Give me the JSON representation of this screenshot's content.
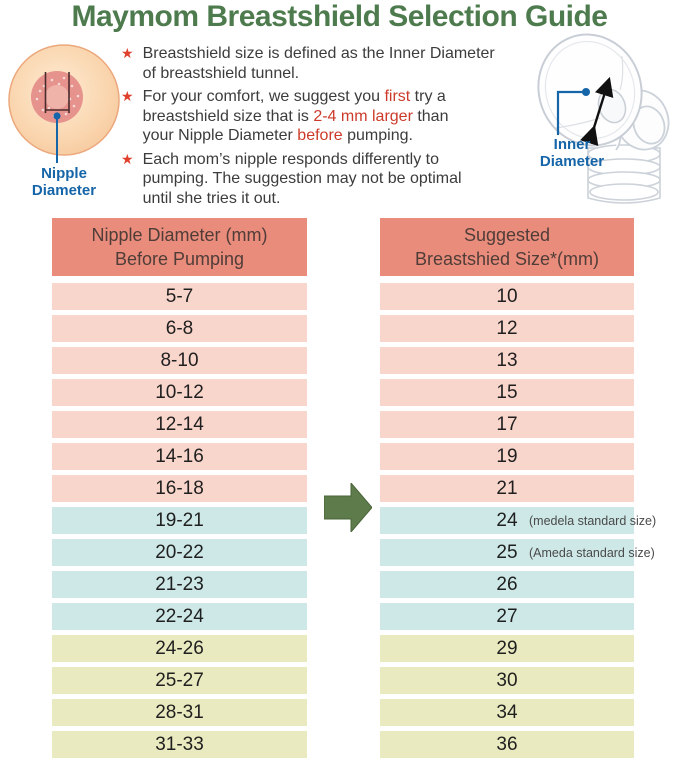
{
  "title": "Maymom Breastshield Selection Guide",
  "icons": {
    "star": "★",
    "arrow_right": "block-arrow-right"
  },
  "colors": {
    "title_green": "#4e7b4e",
    "arrow_green": "#5e7c4b",
    "label_blue": "#1565a8",
    "accent_red": "#cc3b2a",
    "star_red": "#e0402b",
    "header_bg": "#e98c7c",
    "header_text": "#503d38",
    "row_pink": "#f9d6cb",
    "row_blue": "#cde8e7",
    "row_yellow": "#eaeac1",
    "row_text": "#1f1f1f",
    "note_text": "#4a4a4a"
  },
  "bullets": [
    {
      "segments": [
        {
          "text": "Breastshield size is defined as the Inner Diameter\nof breastshield tunnel."
        }
      ]
    },
    {
      "segments": [
        {
          "text": "For your comfort, we suggest you "
        },
        {
          "text": "first",
          "red": true
        },
        {
          "text": " try a\nbreastshield size that is "
        },
        {
          "text": "2-4 mm larger",
          "red": true
        },
        {
          "text": " than\nyour Nipple Diameter "
        },
        {
          "text": "before",
          "red": true
        },
        {
          "text": " pumping."
        }
      ]
    },
    {
      "segments": [
        {
          "text": "Each mom’s nipple responds differently to\npumping. The suggestion may not be optimal\nuntil she tries it out."
        }
      ]
    }
  ],
  "left_illustration": {
    "label": "Nipple\nDiameter"
  },
  "right_illustration": {
    "label": "Inner\nDiameter"
  },
  "table": {
    "left_header": "Nipple Diameter (mm)\nBefore Pumping",
    "right_header": "Suggested\nBreastshied Size*(mm)",
    "rows": [
      {
        "range": "5-7",
        "size": "10",
        "tone": "pink"
      },
      {
        "range": "6-8",
        "size": "12",
        "tone": "pink"
      },
      {
        "range": "8-10",
        "size": "13",
        "tone": "pink"
      },
      {
        "range": "10-12",
        "size": "15",
        "tone": "pink"
      },
      {
        "range": "12-14",
        "size": "17",
        "tone": "pink"
      },
      {
        "range": "14-16",
        "size": "19",
        "tone": "pink"
      },
      {
        "range": "16-18",
        "size": "21",
        "tone": "pink"
      },
      {
        "range": "19-21",
        "size": "24",
        "note": "(medela standard size)",
        "tone": "blue"
      },
      {
        "range": "20-22",
        "size": "25",
        "note": "(Ameda standard size)",
        "tone": "blue"
      },
      {
        "range": "21-23",
        "size": "26",
        "tone": "blue"
      },
      {
        "range": "22-24",
        "size": "27",
        "tone": "blue"
      },
      {
        "range": "24-26",
        "size": "29",
        "tone": "yellow"
      },
      {
        "range": "25-27",
        "size": "30",
        "tone": "yellow"
      },
      {
        "range": "28-31",
        "size": "34",
        "tone": "yellow"
      },
      {
        "range": "31-33",
        "size": "36",
        "tone": "yellow"
      }
    ]
  }
}
